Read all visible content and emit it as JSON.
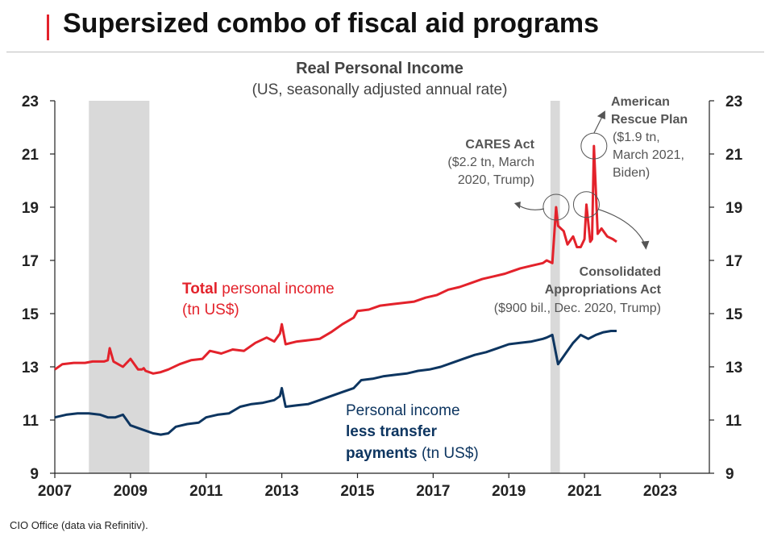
{
  "header": {
    "title": "Supersized combo of fiscal aid programs",
    "accent_color": "#e3222b"
  },
  "source": "CIO Office (data via Refinitiv).",
  "chart_data": {
    "type": "line",
    "title": "Real Personal Income",
    "subtitle": "(US, seasonally adjusted annual rate)",
    "xlim": [
      2007,
      2024.3
    ],
    "ylim": [
      9,
      23
    ],
    "x_ticks": [
      "2007",
      "2009",
      "2011",
      "2013",
      "2015",
      "2017",
      "2019",
      "2021",
      "2023"
    ],
    "y_ticks": [
      "9",
      "11",
      "13",
      "15",
      "17",
      "19",
      "21",
      "23"
    ],
    "recession_shading": [
      {
        "start": 2007.9,
        "end": 2009.5
      },
      {
        "start": 2020.1,
        "end": 2020.35
      }
    ],
    "series": [
      {
        "key": "total",
        "color": "#e3222b",
        "label_bold": "Total",
        "label_rest": " personal income",
        "label_unit": "(tn US$)",
        "x": [
          2007.0,
          2007.2,
          2007.5,
          2007.8,
          2008.0,
          2008.3,
          2008.4,
          2008.45,
          2008.55,
          2008.8,
          2009.0,
          2009.2,
          2009.3,
          2009.35,
          2009.4,
          2009.6,
          2009.8,
          2010.0,
          2010.3,
          2010.6,
          2010.9,
          2011.1,
          2011.4,
          2011.7,
          2012.0,
          2012.3,
          2012.6,
          2012.8,
          2012.95,
          2013.0,
          2013.1,
          2013.4,
          2013.7,
          2014.0,
          2014.3,
          2014.6,
          2014.9,
          2015.0,
          2015.3,
          2015.6,
          2015.9,
          2016.2,
          2016.5,
          2016.8,
          2017.1,
          2017.4,
          2017.7,
          2018.0,
          2018.3,
          2018.6,
          2018.9,
          2019.0,
          2019.3,
          2019.6,
          2019.9,
          2020.0,
          2020.15,
          2020.25,
          2020.3,
          2020.45,
          2020.55,
          2020.7,
          2020.8,
          2020.9,
          2021.0,
          2021.05,
          2021.15,
          2021.2,
          2021.25,
          2021.35,
          2021.45,
          2021.6,
          2021.75,
          2021.85
        ],
        "values": [
          12.9,
          13.1,
          13.15,
          13.15,
          13.2,
          13.2,
          13.25,
          13.7,
          13.2,
          13.0,
          13.3,
          12.9,
          12.9,
          12.95,
          12.85,
          12.75,
          12.8,
          12.9,
          13.1,
          13.25,
          13.3,
          13.6,
          13.5,
          13.65,
          13.6,
          13.9,
          14.1,
          13.95,
          14.25,
          14.6,
          13.85,
          13.95,
          14.0,
          14.05,
          14.3,
          14.6,
          14.85,
          15.1,
          15.15,
          15.3,
          15.35,
          15.4,
          15.45,
          15.6,
          15.7,
          15.9,
          16.0,
          16.15,
          16.3,
          16.4,
          16.5,
          16.55,
          16.7,
          16.8,
          16.9,
          17.0,
          16.9,
          19.0,
          18.3,
          18.1,
          17.6,
          17.9,
          17.5,
          17.5,
          17.8,
          19.1,
          17.7,
          17.8,
          21.3,
          18.0,
          18.2,
          17.9,
          17.8,
          17.7
        ]
      },
      {
        "key": "less_transfer",
        "color": "#0d3560",
        "label_rest": "Personal income",
        "label_bold": "less transfer",
        "label_bold2": "payments",
        "label_unit": " (tn US$)",
        "x": [
          2007.0,
          2007.3,
          2007.6,
          2007.9,
          2008.2,
          2008.4,
          2008.6,
          2008.8,
          2009.0,
          2009.2,
          2009.4,
          2009.6,
          2009.8,
          2010.0,
          2010.2,
          2010.5,
          2010.8,
          2011.0,
          2011.3,
          2011.6,
          2011.9,
          2012.2,
          2012.5,
          2012.8,
          2012.95,
          2013.0,
          2013.1,
          2013.4,
          2013.7,
          2014.0,
          2014.3,
          2014.6,
          2014.9,
          2015.1,
          2015.4,
          2015.7,
          2016.0,
          2016.3,
          2016.6,
          2016.9,
          2017.2,
          2017.5,
          2017.8,
          2018.1,
          2018.4,
          2018.7,
          2019.0,
          2019.3,
          2019.6,
          2019.9,
          2020.0,
          2020.15,
          2020.3,
          2020.5,
          2020.7,
          2020.9,
          2021.1,
          2021.3,
          2021.5,
          2021.7,
          2021.85
        ],
        "values": [
          11.1,
          11.2,
          11.25,
          11.25,
          11.2,
          11.1,
          11.1,
          11.2,
          10.8,
          10.7,
          10.6,
          10.5,
          10.45,
          10.5,
          10.75,
          10.85,
          10.9,
          11.1,
          11.2,
          11.25,
          11.5,
          11.6,
          11.65,
          11.75,
          11.9,
          12.2,
          11.5,
          11.55,
          11.6,
          11.75,
          11.9,
          12.05,
          12.2,
          12.5,
          12.55,
          12.65,
          12.7,
          12.75,
          12.85,
          12.9,
          13.0,
          13.15,
          13.3,
          13.45,
          13.55,
          13.7,
          13.85,
          13.9,
          13.95,
          14.05,
          14.1,
          14.2,
          13.1,
          13.5,
          13.9,
          14.2,
          14.05,
          14.2,
          14.3,
          14.35,
          14.35
        ]
      }
    ],
    "annotations": {
      "cares": {
        "title": "CARES Act",
        "line1": "($2.2 tn, March",
        "line2": "2020, Trump)",
        "x": 2020.25,
        "y": 19.0
      },
      "arp": {
        "title1": "American",
        "title2": "Rescue Plan",
        "line1": "($1.9 tn,",
        "line2": "March 2021,",
        "line3": "Biden)",
        "x": 2021.25,
        "y": 21.3
      },
      "caa": {
        "title1": "Consolidated",
        "title2": "Appropriations Act",
        "line1": "($900 bil., Dec. 2020, Trump)",
        "x": 2021.05,
        "y": 19.1
      }
    }
  }
}
